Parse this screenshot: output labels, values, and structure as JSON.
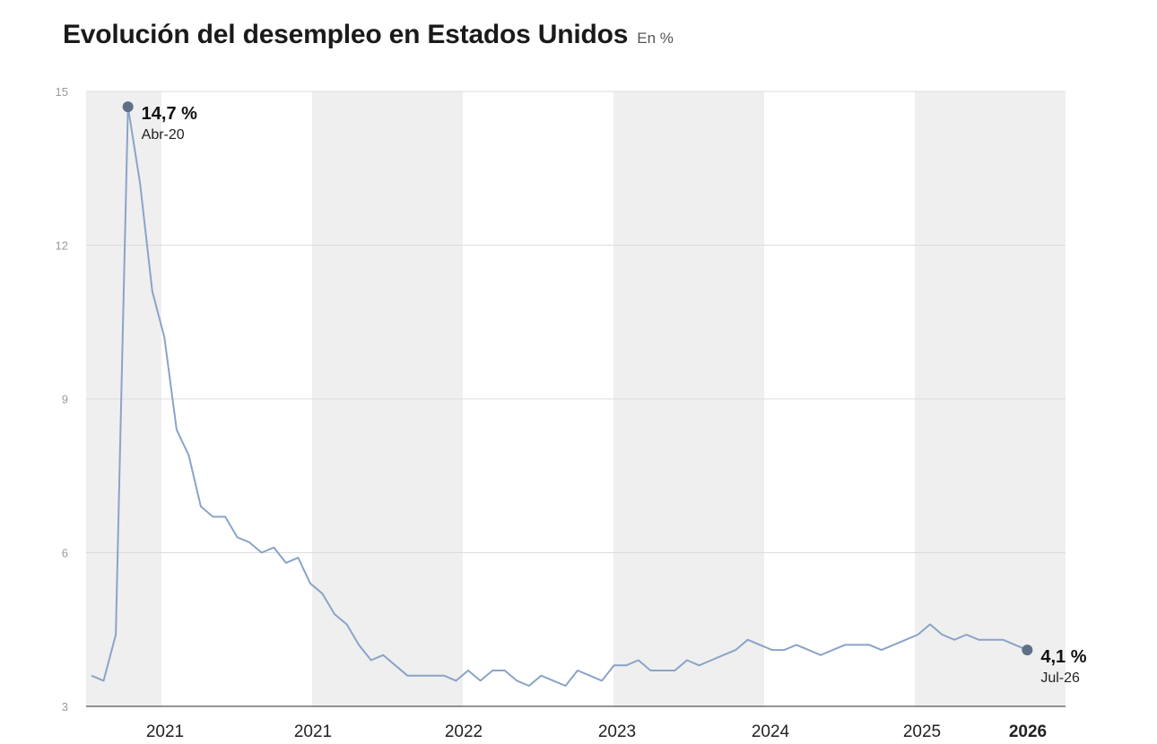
{
  "header": {
    "title": "Evolución del desempleo en Estados Unidos",
    "subtitle": "En %"
  },
  "chart_data": {
    "type": "line",
    "title": "Evolución del desempleo en Estados Unidos",
    "subtitle": "En %",
    "xlabel": "",
    "ylabel": "",
    "ylim": [
      3,
      15
    ],
    "yticks": [
      "15",
      "12",
      "9",
      "6",
      "3"
    ],
    "x_tick_labels": [
      "2021",
      "2021",
      "2022",
      "2023",
      "2024",
      "2025",
      "2026"
    ],
    "grid": true,
    "line_color": "#8aa4c8",
    "marker_color": "#5f6f86",
    "band_color": "#efefef",
    "series": [
      {
        "values": [
          3.6,
          3.5,
          4.4,
          14.7,
          13.2,
          11.1,
          10.2,
          8.4,
          7.9,
          6.9,
          6.7,
          6.7,
          6.3,
          6.2,
          6.0,
          6.1,
          5.8,
          5.9,
          5.4,
          5.2,
          4.8,
          4.6,
          4.2,
          3.9,
          4.0,
          3.8,
          3.6,
          3.6,
          3.6,
          3.6,
          3.5,
          3.7,
          3.5,
          3.7,
          3.7,
          3.5,
          3.4,
          3.6,
          3.5,
          3.4,
          3.7,
          3.6,
          3.5,
          3.8,
          3.8,
          3.9,
          3.7,
          3.7,
          3.7,
          3.9,
          3.8,
          3.9,
          4.0,
          4.1,
          4.3,
          4.2,
          4.1,
          4.1,
          4.2,
          4.1,
          4.0,
          4.1,
          4.2,
          4.2,
          4.2,
          4.1,
          4.2,
          4.3,
          4.4,
          4.6,
          4.4,
          4.3,
          4.4,
          4.3,
          4.3,
          4.3,
          4.2,
          4.1
        ]
      }
    ],
    "annotations": [
      {
        "value": "14,7 %",
        "date": "Abr-20"
      },
      {
        "value": "4,1 %",
        "date": "Jul-26"
      }
    ]
  }
}
